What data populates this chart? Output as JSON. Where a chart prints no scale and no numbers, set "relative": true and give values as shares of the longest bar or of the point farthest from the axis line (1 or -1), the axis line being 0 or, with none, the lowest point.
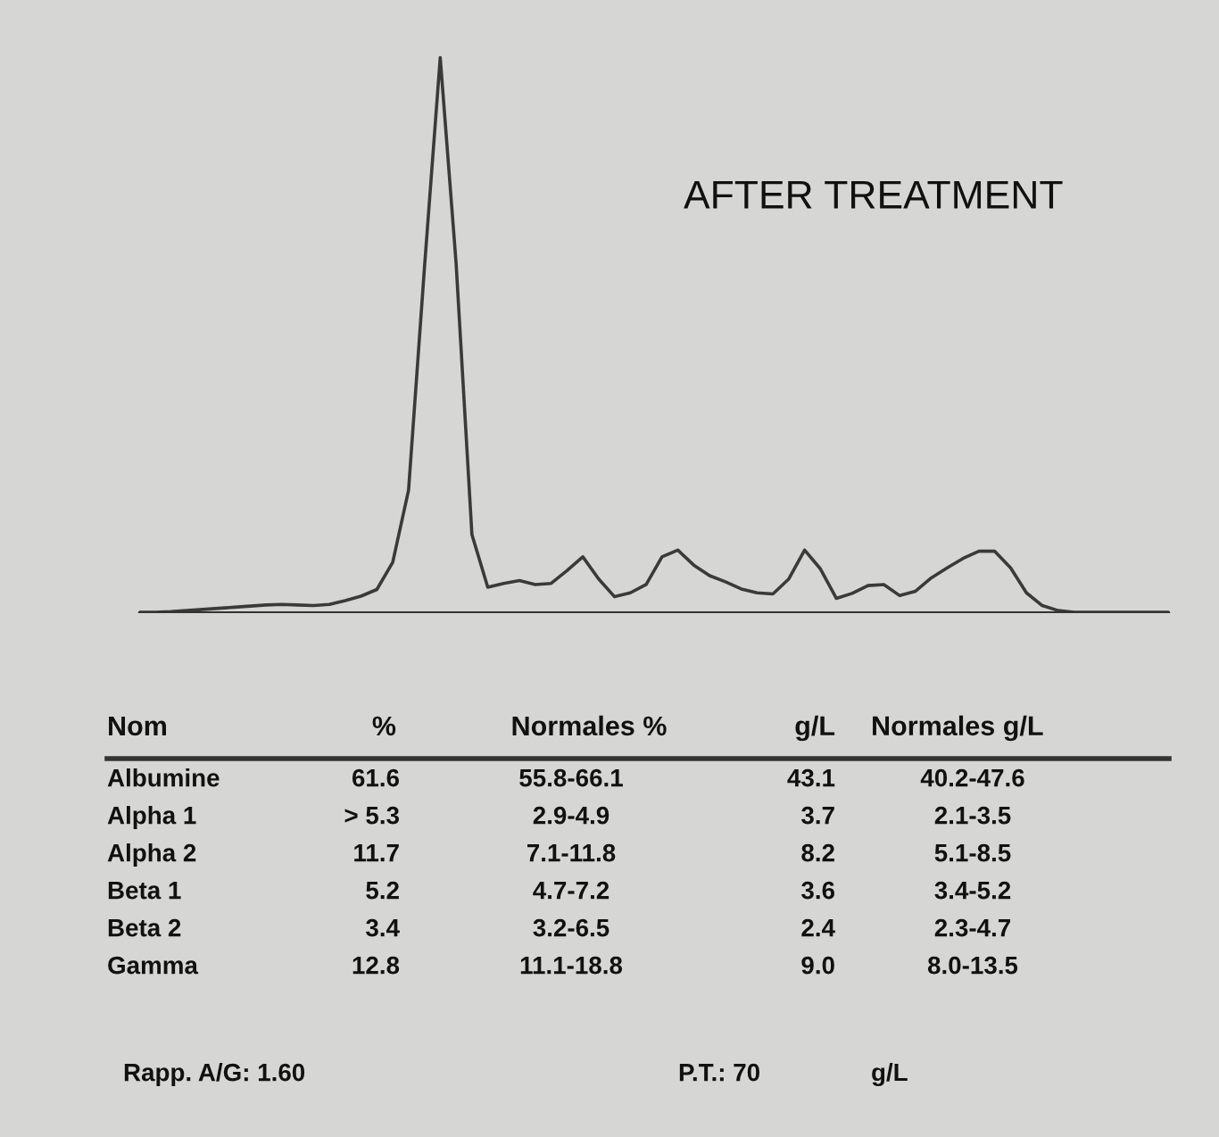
{
  "chart_data": {
    "type": "line",
    "title": "AFTER TREATMENT",
    "relative": true,
    "grid": false,
    "legend": false,
    "marker": "none",
    "line_style": "solid",
    "categories": [
      null,
      null,
      null,
      null,
      null,
      null,
      null,
      null,
      null,
      null,
      null,
      null,
      null,
      null,
      null,
      null,
      null,
      null,
      null,
      null,
      null,
      null,
      null,
      null,
      null,
      null,
      null,
      null,
      null,
      null,
      null,
      null,
      null,
      null,
      null,
      null,
      null,
      null,
      null,
      null,
      null,
      null,
      null,
      null,
      null,
      null,
      null,
      null,
      null,
      null,
      null,
      null,
      null,
      null,
      null,
      null,
      null,
      null,
      null,
      null,
      null,
      null,
      null,
      null,
      null,
      null
    ],
    "series": [
      {
        "color": "#3a3a3a",
        "values": [
          0,
          0,
          0.001,
          0.003,
          0.005,
          0.007,
          0.009,
          0.011,
          0.013,
          0.014,
          0.013,
          0.012,
          0.014,
          0.021,
          0.029,
          0.041,
          0.09,
          0.22,
          0.62,
          1,
          0.63,
          0.14,
          0.045,
          0.052,
          0.057,
          0.05,
          0.052,
          0.075,
          0.1,
          0.06,
          0.028,
          0.035,
          0.05,
          0.1,
          0.112,
          0.085,
          0.066,
          0.055,
          0.042,
          0.035,
          0.033,
          0.06,
          0.112,
          0.078,
          0.025,
          0.034,
          0.048,
          0.05,
          0.03,
          0.038,
          0.062,
          0.08,
          0.097,
          0.11,
          0.11,
          0.08,
          0.035,
          0.012,
          0.003,
          0,
          0,
          0,
          0,
          0,
          0,
          0
        ]
      }
    ],
    "annotations": [
      "Nom",
      "%",
      "Normales %",
      "g/L",
      "Normales g/L",
      "Albumine",
      "61.6",
      "55.8-66.1",
      "43.1",
      "40.2-47.6",
      "Alpha 1",
      "> 5.3",
      "2.9-4.9",
      "3.7",
      "2.1-3.5",
      "Alpha 2",
      "11.7",
      "7.1-11.8",
      "8.2",
      "5.1-8.5",
      "Beta 1",
      "5.2",
      "4.7-7.2",
      "3.6",
      "3.4-5.2",
      "Beta 2",
      "3.4",
      "3.2-6.5",
      "2.4",
      "2.3-4.7",
      "Gamma",
      "12.8",
      "11.1-18.8",
      "9.0",
      "8.0-13.5",
      "Rapp. A/G: 1.60",
      "P.T.: 70",
      "g/L"
    ]
  }
}
